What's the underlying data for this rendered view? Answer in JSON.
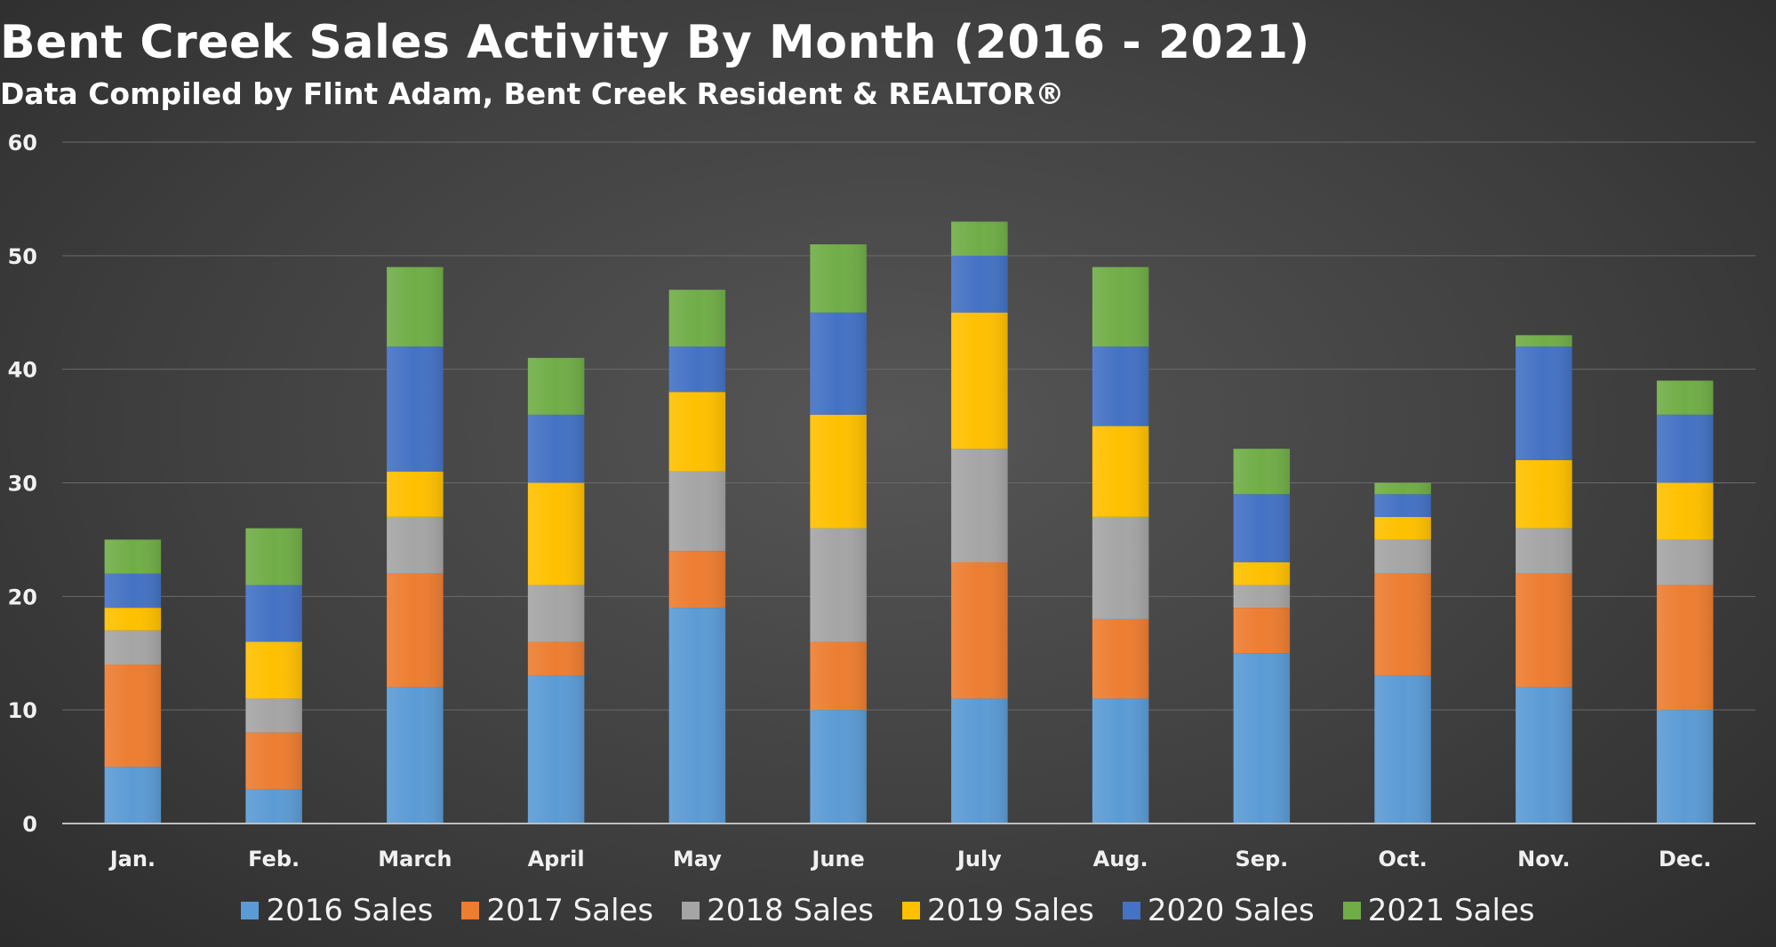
{
  "chart_data": {
    "type": "bar",
    "stacked": true,
    "title": "Bent Creek Sales Activity By Month (2016 - 2021)",
    "subtitle": "Data Compiled by Flint Adam, Bent Creek Resident & REALTOR®",
    "categories": [
      "Jan.",
      "Feb.",
      "March",
      "April",
      "May",
      "June",
      "July",
      "Aug.",
      "Sep.",
      "Oct.",
      "Nov.",
      "Dec."
    ],
    "ylim": [
      0,
      60
    ],
    "yticks": [
      0,
      10,
      20,
      30,
      40,
      50,
      60
    ],
    "grid": true,
    "legend_position": "bottom",
    "series": [
      {
        "name": "2016 Sales",
        "color": "#5b9bd5",
        "values": [
          5,
          3,
          12,
          13,
          19,
          10,
          11,
          11,
          15,
          13,
          12,
          10
        ]
      },
      {
        "name": "2017 Sales",
        "color": "#ed7d31",
        "values": [
          9,
          5,
          10,
          3,
          5,
          6,
          12,
          7,
          4,
          9,
          10,
          11
        ]
      },
      {
        "name": "2018 Sales",
        "color": "#a5a5a5",
        "values": [
          3,
          3,
          5,
          5,
          7,
          10,
          10,
          9,
          2,
          3,
          4,
          4
        ]
      },
      {
        "name": "2019 Sales",
        "color": "#ffc000",
        "values": [
          2,
          5,
          4,
          9,
          7,
          10,
          12,
          8,
          2,
          2,
          6,
          5
        ]
      },
      {
        "name": "2020 Sales",
        "color": "#4472c4",
        "values": [
          3,
          5,
          11,
          6,
          4,
          9,
          5,
          7,
          6,
          2,
          10,
          6
        ]
      },
      {
        "name": "2021 Sales",
        "color": "#70ad47",
        "values": [
          3,
          5,
          7,
          5,
          5,
          6,
          3,
          7,
          4,
          1,
          1,
          3
        ]
      }
    ]
  }
}
